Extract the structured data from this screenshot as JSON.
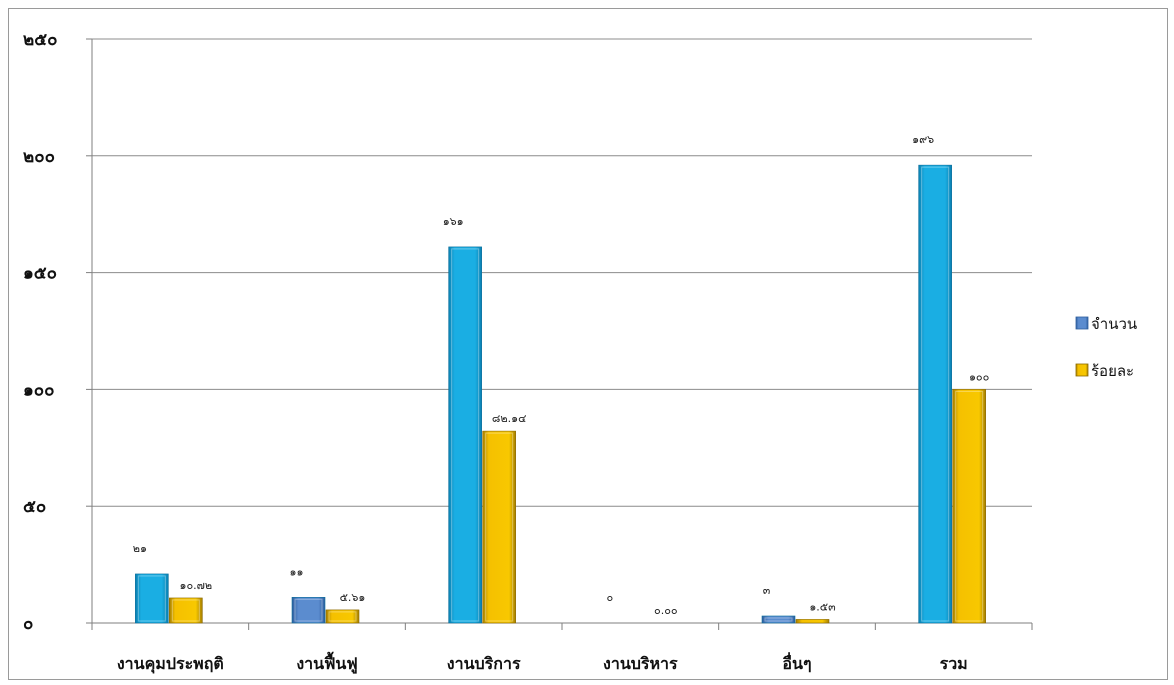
{
  "chart_data": {
    "type": "bar",
    "categories": [
      "งานคุมประพฤติ",
      "งานฟื้นฟู",
      "งานบริการ",
      "งานบริหาร",
      "อื่นๆ",
      "รวม"
    ],
    "series": [
      {
        "name": "จำนวน",
        "values": [
          21,
          11,
          161,
          0,
          3,
          196
        ],
        "data_labels": [
          "๒๑",
          "๑๑",
          "๑๖๑",
          "๐",
          "๓",
          "๑๙๖"
        ],
        "bar_colors": [
          "#1aaee3",
          "#4f7fc4",
          "#1aaee3",
          "#1aaee3",
          "#4f7fc4",
          "#1aaee3"
        ]
      },
      {
        "name": "ร้อยละ",
        "values": [
          10.72,
          5.61,
          82.14,
          0.0,
          1.53,
          100
        ],
        "data_labels": [
          "๑๐.๗๒",
          "๕.๖๑",
          "๘๒.๑๔",
          "๐.๐๐",
          "๑.๕๓",
          "๑๐๐"
        ],
        "bar_colors": [
          "#f5c000",
          "#f5c000",
          "#f5c000",
          "#f5c000",
          "#f5c000",
          "#f5c000"
        ]
      }
    ],
    "ylim": [
      0,
      250
    ],
    "yticks": [
      0,
      50,
      100,
      150,
      200,
      250
    ],
    "ytick_labels": [
      "๐",
      "๕๐",
      "๑๐๐",
      "๑๕๐",
      "๒๐๐",
      "๒๕๐"
    ],
    "grid": true,
    "legend_position": "right",
    "legend": [
      {
        "label": "จำนวน",
        "color": "#4f7fc4"
      },
      {
        "label": "ร้อยละ",
        "color": "#f5c000"
      }
    ],
    "title": "",
    "xlabel": "",
    "ylabel": ""
  }
}
